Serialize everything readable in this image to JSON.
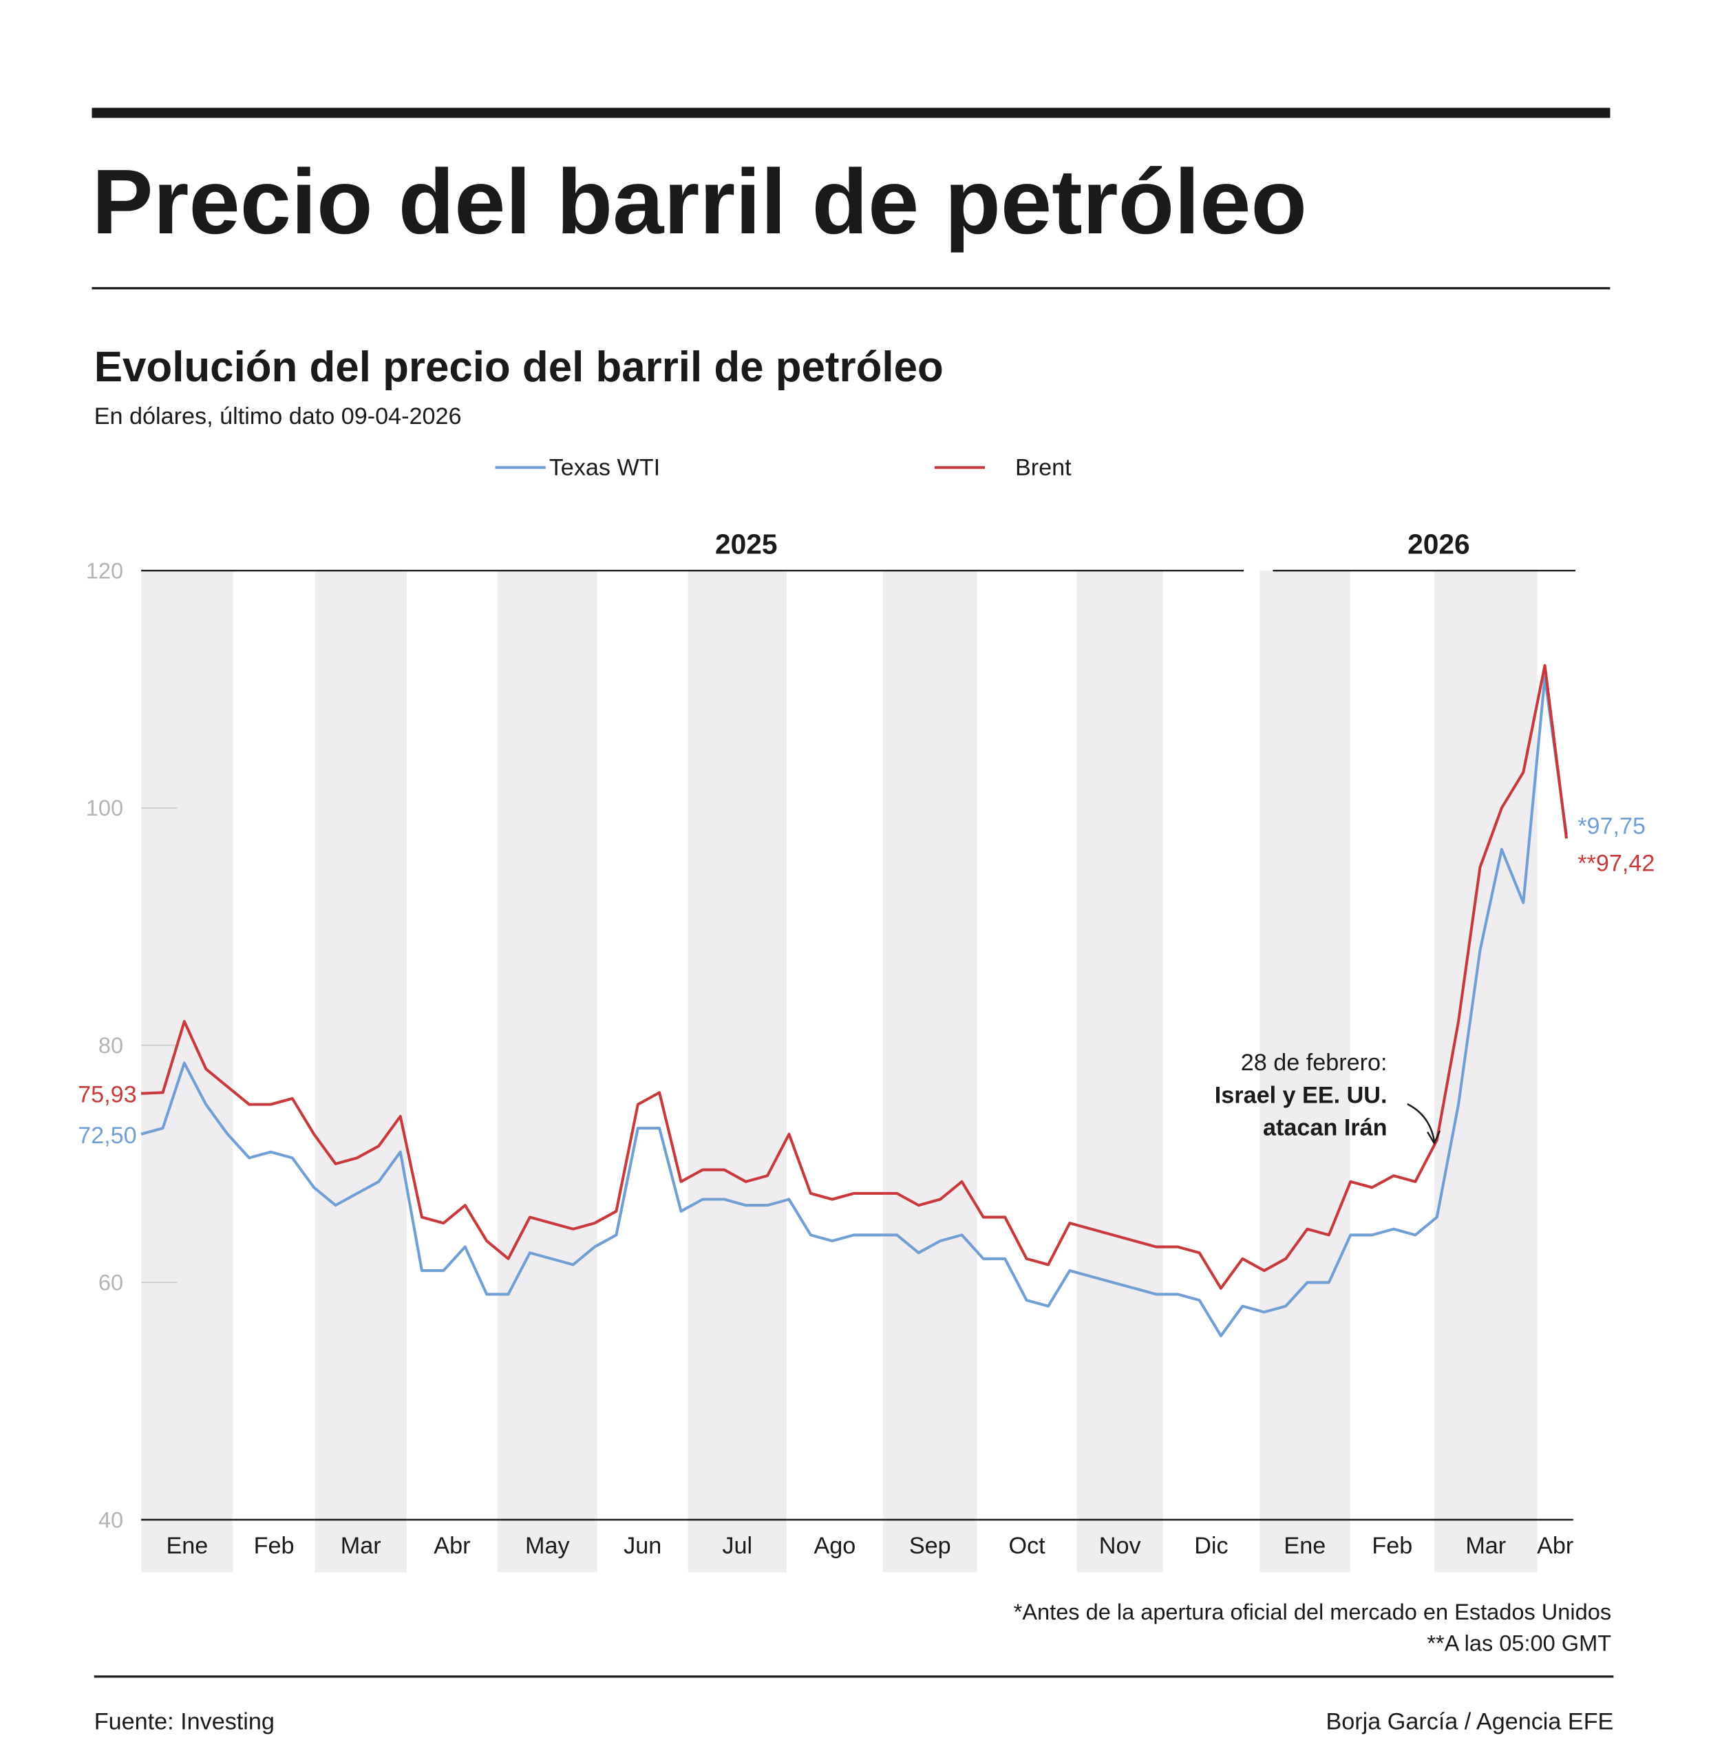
{
  "header": {
    "title": "Precio del barril de petróleo"
  },
  "chart_data": {
    "type": "line",
    "title": "Evolución del precio del barril de petróleo",
    "subtitle": "En dólares, último dato 09-04-2026",
    "years": [
      "2025",
      "2026"
    ],
    "months": [
      "Ene",
      "Feb",
      "Mar",
      "Abr",
      "May",
      "Jun",
      "Jul",
      "Ago",
      "Sep",
      "Oct",
      "Nov",
      "Dic",
      "Ene",
      "Feb",
      "Mar",
      "Abr"
    ],
    "ylim": [
      40,
      120
    ],
    "yticks": [
      40,
      60,
      80,
      100,
      120
    ],
    "series": [
      {
        "name": "Texas WTI",
        "color": "#6f9fd4",
        "first_label": "72,50",
        "last_label": "*97,75",
        "values": [
          72.5,
          73,
          78.5,
          75,
          72.5,
          70.5,
          71,
          70.5,
          68,
          66.5,
          67.5,
          68.5,
          71,
          61,
          61,
          63,
          59,
          59,
          62.5,
          62,
          61.5,
          63,
          64,
          73,
          73,
          66,
          67,
          67,
          66.5,
          66.5,
          67,
          64,
          63.5,
          64,
          64,
          64,
          62.5,
          63.5,
          64,
          62,
          62,
          58.5,
          58,
          61,
          60.5,
          60,
          59.5,
          59,
          59,
          58.5,
          55.5,
          58,
          57.5,
          58,
          60,
          60,
          64,
          64,
          64.5,
          64,
          65.5,
          75,
          88,
          96.5,
          92,
          111,
          97.75
        ]
      },
      {
        "name": "Brent",
        "color": "#c8393b",
        "first_label": "75,93",
        "last_label": "**97,42",
        "values": [
          75.93,
          76,
          82,
          78,
          76.5,
          75,
          75,
          75.5,
          72.5,
          70,
          70.5,
          71.5,
          74,
          65.5,
          65,
          66.5,
          63.5,
          62,
          65.5,
          65,
          64.5,
          65,
          66,
          75,
          76,
          68.5,
          69.5,
          69.5,
          68.5,
          69,
          72.5,
          67.5,
          67,
          67.5,
          67.5,
          67.5,
          66.5,
          67,
          68.5,
          65.5,
          65.5,
          62,
          61.5,
          65,
          64.5,
          64,
          63.5,
          63,
          63,
          62.5,
          59.5,
          62,
          61,
          62,
          64.5,
          64,
          68.5,
          68,
          69,
          68.5,
          72,
          82,
          95,
          100,
          103,
          112,
          97.42
        ]
      }
    ],
    "annotation": [
      "28 de febrero:",
      "Israel y EE. UU.",
      "atacan Irán"
    ],
    "notes": [
      "*Antes de la apertura oficial del mercado en Estados Unidos",
      "**A las 05:00 GMT"
    ]
  },
  "footer": {
    "source": "Fuente: Investing",
    "credit": "Borja García / Agencia EFE"
  }
}
